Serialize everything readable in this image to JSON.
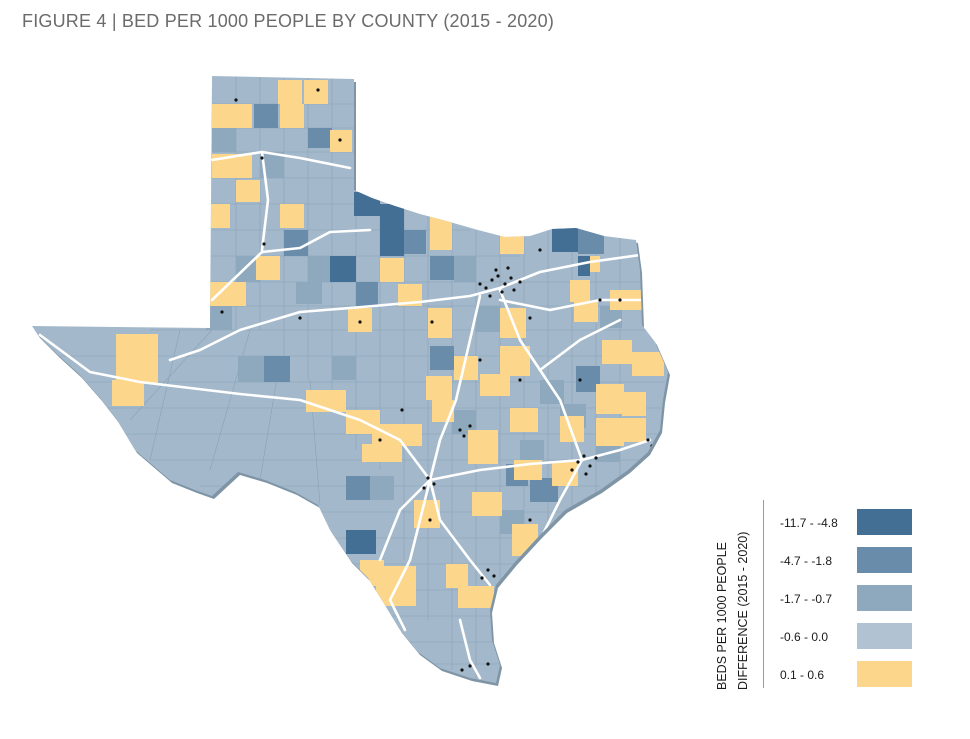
{
  "figure": {
    "title": "FIGURE 4 | BED PER 1000 PEOPLE BY COUNTY (2015 - 2020)"
  },
  "legend": {
    "title_line1": "BEDS PER 1000  PEOPLE",
    "title_line2": "DIFFERENCE (2015 - 2020)",
    "classes": [
      {
        "label": "-11.7 - -4.8",
        "color": "#426f93"
      },
      {
        "label": "-4.7 - -1.8",
        "color": "#6a8cab"
      },
      {
        "label": "-1.7 - -0.7",
        "color": "#8ea8be"
      },
      {
        "label": "-0.6 - 0.0",
        "color": "#b1c3d2"
      },
      {
        "label": "0.1 - 0.6",
        "color": "#fcd68a"
      }
    ]
  },
  "map": {
    "region": "Texas counties",
    "base_color": "#a3b9cb",
    "highway_color": "#ffffff",
    "city_dot_color": "#111111"
  }
}
